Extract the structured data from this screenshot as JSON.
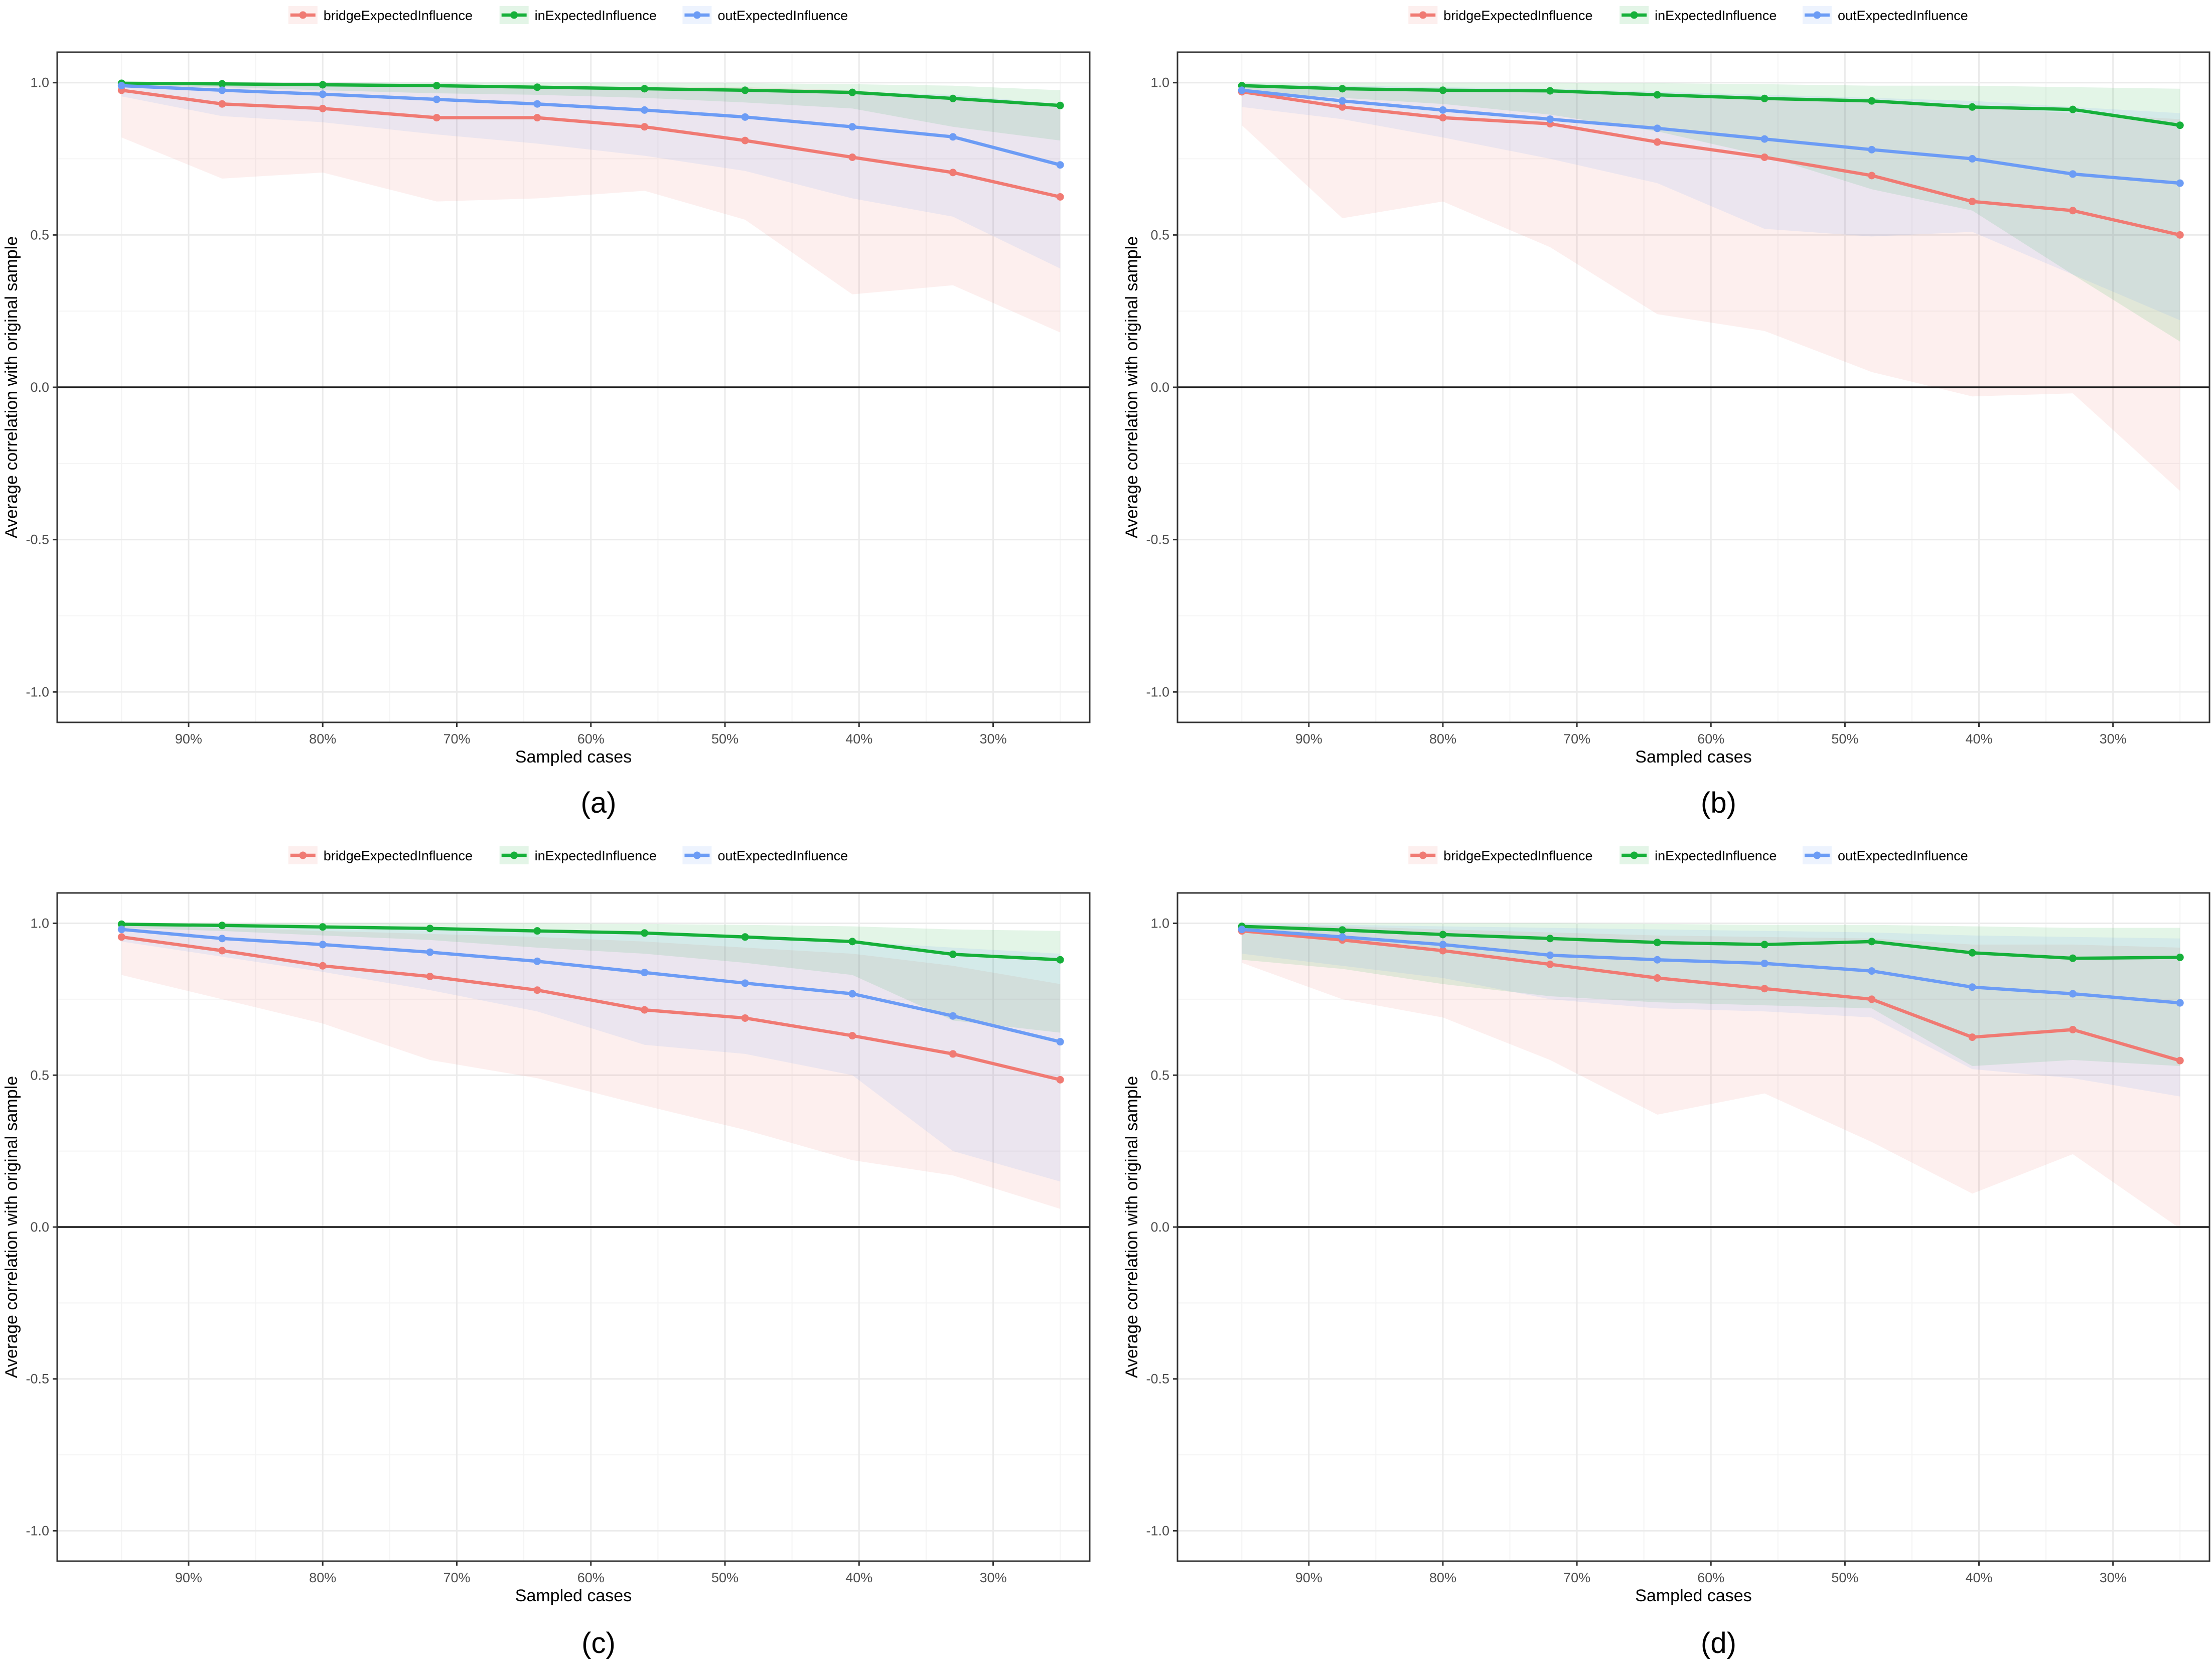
{
  "figure": {
    "panels_labels": [
      "(a)",
      "(b)",
      "(c)",
      "(d)"
    ]
  },
  "colors": {
    "bridge": "#F07A73",
    "in": "#16B03A",
    "out": "#6C9CF5",
    "grid": "#EBEBEB",
    "zero_line": "#1A1A1A",
    "panel_border": "#333333",
    "text": "#4D4D4D"
  },
  "chart_data": [
    {
      "type": "line",
      "panel_label": "(a)",
      "xlabel": "Sampled cases",
      "ylabel": "Average correlation with original sample",
      "x": [
        95,
        87.5,
        80,
        71.5,
        64,
        56,
        48.5,
        40.5,
        33,
        25
      ],
      "xlim": [
        99.8,
        22.8
      ],
      "x_ticks": [
        90,
        80,
        70,
        60,
        50,
        40,
        30
      ],
      "x_tick_labels": [
        "90%",
        "80%",
        "70%",
        "60%",
        "50%",
        "40%",
        "30%"
      ],
      "ylim": [
        -1.1,
        1.1
      ],
      "y_ticks": [
        -1.0,
        -0.5,
        0.0,
        0.5,
        1.0
      ],
      "y_tick_labels": [
        "-1.0",
        "-0.5",
        "0.0",
        "0.5",
        "1.0"
      ],
      "series": [
        {
          "name": "bridgeExpectedInfluence",
          "color_key": "bridge",
          "values": [
            0.975,
            0.93,
            0.915,
            0.885,
            0.885,
            0.855,
            0.81,
            0.755,
            0.705,
            0.625
          ],
          "lower": [
            0.82,
            0.685,
            0.705,
            0.61,
            0.62,
            0.645,
            0.55,
            0.305,
            0.335,
            0.18
          ],
          "upper": [
            0.995,
            0.99,
            0.99,
            0.985,
            0.985,
            0.985,
            0.985,
            0.975,
            0.95,
            0.92
          ]
        },
        {
          "name": "inExpectedInfluence",
          "color_key": "in",
          "values": [
            0.998,
            0.996,
            0.993,
            0.99,
            0.985,
            0.98,
            0.975,
            0.968,
            0.948,
            0.925
          ],
          "lower": [
            0.99,
            0.985,
            0.975,
            0.965,
            0.96,
            0.95,
            0.935,
            0.915,
            0.855,
            0.81
          ],
          "upper": [
            1.0,
            1.0,
            1.0,
            1.0,
            1.0,
            1.0,
            0.998,
            0.995,
            0.99,
            0.975
          ]
        },
        {
          "name": "outExpectedInfluence",
          "color_key": "out",
          "values": [
            0.99,
            0.975,
            0.962,
            0.945,
            0.93,
            0.91,
            0.887,
            0.855,
            0.822,
            0.73
          ],
          "lower": [
            0.955,
            0.89,
            0.87,
            0.83,
            0.8,
            0.76,
            0.71,
            0.62,
            0.56,
            0.39
          ],
          "upper": [
            1.0,
            1.0,
            0.998,
            0.995,
            0.99,
            0.985,
            0.98,
            0.97,
            0.96,
            0.93
          ]
        }
      ],
      "legend": {
        "position": "top"
      }
    },
    {
      "type": "line",
      "panel_label": "(b)",
      "xlabel": "Sampled cases",
      "ylabel": "Average correlation with original sample",
      "x": [
        95,
        87.5,
        80,
        72,
        64,
        56,
        48,
        40.5,
        33,
        25
      ],
      "xlim": [
        99.8,
        22.8
      ],
      "x_ticks": [
        90,
        80,
        70,
        60,
        50,
        40,
        30
      ],
      "x_tick_labels": [
        "90%",
        "80%",
        "70%",
        "60%",
        "50%",
        "40%",
        "30%"
      ],
      "ylim": [
        -1.1,
        1.1
      ],
      "y_ticks": [
        -1.0,
        -0.5,
        0.0,
        0.5,
        1.0
      ],
      "y_tick_labels": [
        "-1.0",
        "-0.5",
        "0.0",
        "0.5",
        "1.0"
      ],
      "series": [
        {
          "name": "bridgeExpectedInfluence",
          "color_key": "bridge",
          "values": [
            0.97,
            0.92,
            0.885,
            0.865,
            0.805,
            0.755,
            0.695,
            0.61,
            0.58,
            0.5
          ],
          "lower": [
            0.86,
            0.555,
            0.61,
            0.46,
            0.24,
            0.185,
            0.05,
            -0.03,
            -0.02,
            -0.34
          ],
          "upper": [
            0.995,
            0.985,
            0.975,
            0.97,
            0.96,
            0.95,
            0.94,
            0.92,
            0.9,
            0.88
          ]
        },
        {
          "name": "inExpectedInfluence",
          "color_key": "in",
          "values": [
            0.99,
            0.98,
            0.975,
            0.973,
            0.96,
            0.948,
            0.94,
            0.92,
            0.912,
            0.86
          ],
          "lower": [
            0.97,
            0.95,
            0.93,
            0.895,
            0.84,
            0.76,
            0.65,
            0.58,
            0.37,
            0.15
          ],
          "upper": [
            1.0,
            1.0,
            1.0,
            1.0,
            0.998,
            0.995,
            0.99,
            0.99,
            0.985,
            0.98
          ]
        },
        {
          "name": "outExpectedInfluence",
          "color_key": "out",
          "values": [
            0.975,
            0.94,
            0.91,
            0.88,
            0.85,
            0.815,
            0.78,
            0.75,
            0.7,
            0.67
          ],
          "lower": [
            0.92,
            0.88,
            0.82,
            0.75,
            0.67,
            0.52,
            0.495,
            0.51,
            0.37,
            0.22
          ],
          "upper": [
            0.995,
            0.99,
            0.985,
            0.98,
            0.97,
            0.96,
            0.95,
            0.94,
            0.92,
            0.9
          ]
        }
      ],
      "legend": {
        "position": "top"
      }
    },
    {
      "type": "line",
      "panel_label": "(c)",
      "xlabel": "Sampled cases",
      "ylabel": "Average correlation with original sample",
      "x": [
        95,
        87.5,
        80,
        72,
        64,
        56,
        48.5,
        40.5,
        33,
        25
      ],
      "xlim": [
        99.8,
        22.8
      ],
      "x_ticks": [
        90,
        80,
        70,
        60,
        50,
        40,
        30
      ],
      "x_tick_labels": [
        "90%",
        "80%",
        "70%",
        "60%",
        "50%",
        "40%",
        "30%"
      ],
      "ylim": [
        -1.1,
        1.1
      ],
      "y_ticks": [
        -1.0,
        -0.5,
        0.0,
        0.5,
        1.0
      ],
      "y_tick_labels": [
        "-1.0",
        "-0.5",
        "0.0",
        "0.5",
        "1.0"
      ],
      "series": [
        {
          "name": "bridgeExpectedInfluence",
          "color_key": "bridge",
          "values": [
            0.955,
            0.91,
            0.86,
            0.825,
            0.78,
            0.715,
            0.688,
            0.63,
            0.57,
            0.485
          ],
          "lower": [
            0.83,
            0.75,
            0.67,
            0.55,
            0.49,
            0.4,
            0.32,
            0.22,
            0.17,
            0.06
          ],
          "upper": [
            0.995,
            0.985,
            0.975,
            0.965,
            0.955,
            0.94,
            0.92,
            0.9,
            0.86,
            0.8
          ]
        },
        {
          "name": "inExpectedInfluence",
          "color_key": "in",
          "values": [
            0.997,
            0.993,
            0.988,
            0.983,
            0.975,
            0.968,
            0.955,
            0.94,
            0.898,
            0.88
          ],
          "lower": [
            0.985,
            0.975,
            0.96,
            0.945,
            0.92,
            0.9,
            0.87,
            0.83,
            0.68,
            0.64
          ],
          "upper": [
            1.0,
            1.0,
            1.0,
            1.0,
            1.0,
            0.998,
            0.995,
            0.99,
            0.98,
            0.975
          ]
        },
        {
          "name": "outExpectedInfluence",
          "color_key": "out",
          "values": [
            0.98,
            0.95,
            0.93,
            0.905,
            0.875,
            0.838,
            0.803,
            0.768,
            0.695,
            0.61
          ],
          "lower": [
            0.94,
            0.89,
            0.84,
            0.78,
            0.71,
            0.6,
            0.57,
            0.5,
            0.25,
            0.15
          ],
          "upper": [
            0.998,
            0.995,
            0.99,
            0.985,
            0.975,
            0.965,
            0.955,
            0.94,
            0.92,
            0.9
          ]
        }
      ],
      "legend": {
        "position": "top"
      }
    },
    {
      "type": "line",
      "panel_label": "(d)",
      "xlabel": "Sampled cases",
      "ylabel": "Average correlation with original sample",
      "x": [
        95,
        87.5,
        80,
        72,
        64,
        56,
        48,
        40.5,
        33,
        25
      ],
      "xlim": [
        99.8,
        22.8
      ],
      "x_ticks": [
        90,
        80,
        70,
        60,
        50,
        40,
        30
      ],
      "x_tick_labels": [
        "90%",
        "80%",
        "70%",
        "60%",
        "50%",
        "40%",
        "30%"
      ],
      "ylim": [
        -1.1,
        1.1
      ],
      "y_ticks": [
        -1.0,
        -0.5,
        0.0,
        0.5,
        1.0
      ],
      "y_tick_labels": [
        "-1.0",
        "-0.5",
        "0.0",
        "0.5",
        "1.0"
      ],
      "series": [
        {
          "name": "bridgeExpectedInfluence",
          "color_key": "bridge",
          "values": [
            0.975,
            0.945,
            0.91,
            0.865,
            0.82,
            0.785,
            0.75,
            0.625,
            0.65,
            0.548
          ],
          "lower": [
            0.87,
            0.75,
            0.69,
            0.55,
            0.37,
            0.44,
            0.28,
            0.11,
            0.24,
            -0.005
          ],
          "upper": [
            0.995,
            0.99,
            0.98,
            0.97,
            0.96,
            0.955,
            0.95,
            0.93,
            0.93,
            0.92
          ]
        },
        {
          "name": "inExpectedInfluence",
          "color_key": "in",
          "values": [
            0.99,
            0.978,
            0.963,
            0.95,
            0.937,
            0.93,
            0.94,
            0.903,
            0.885,
            0.888
          ],
          "lower": [
            0.88,
            0.85,
            0.8,
            0.76,
            0.74,
            0.73,
            0.72,
            0.53,
            0.55,
            0.53
          ],
          "upper": [
            1.0,
            1.0,
            1.0,
            1.0,
            0.998,
            0.995,
            0.995,
            0.99,
            0.985,
            0.985
          ]
        },
        {
          "name": "outExpectedInfluence",
          "color_key": "out",
          "values": [
            0.98,
            0.955,
            0.93,
            0.895,
            0.88,
            0.868,
            0.843,
            0.79,
            0.768,
            0.738
          ],
          "lower": [
            0.9,
            0.86,
            0.82,
            0.75,
            0.72,
            0.71,
            0.69,
            0.52,
            0.49,
            0.43
          ],
          "upper": [
            1.0,
            0.995,
            0.99,
            0.985,
            0.98,
            0.975,
            0.97,
            0.96,
            0.955,
            0.95
          ]
        }
      ],
      "legend": {
        "position": "top"
      }
    }
  ]
}
